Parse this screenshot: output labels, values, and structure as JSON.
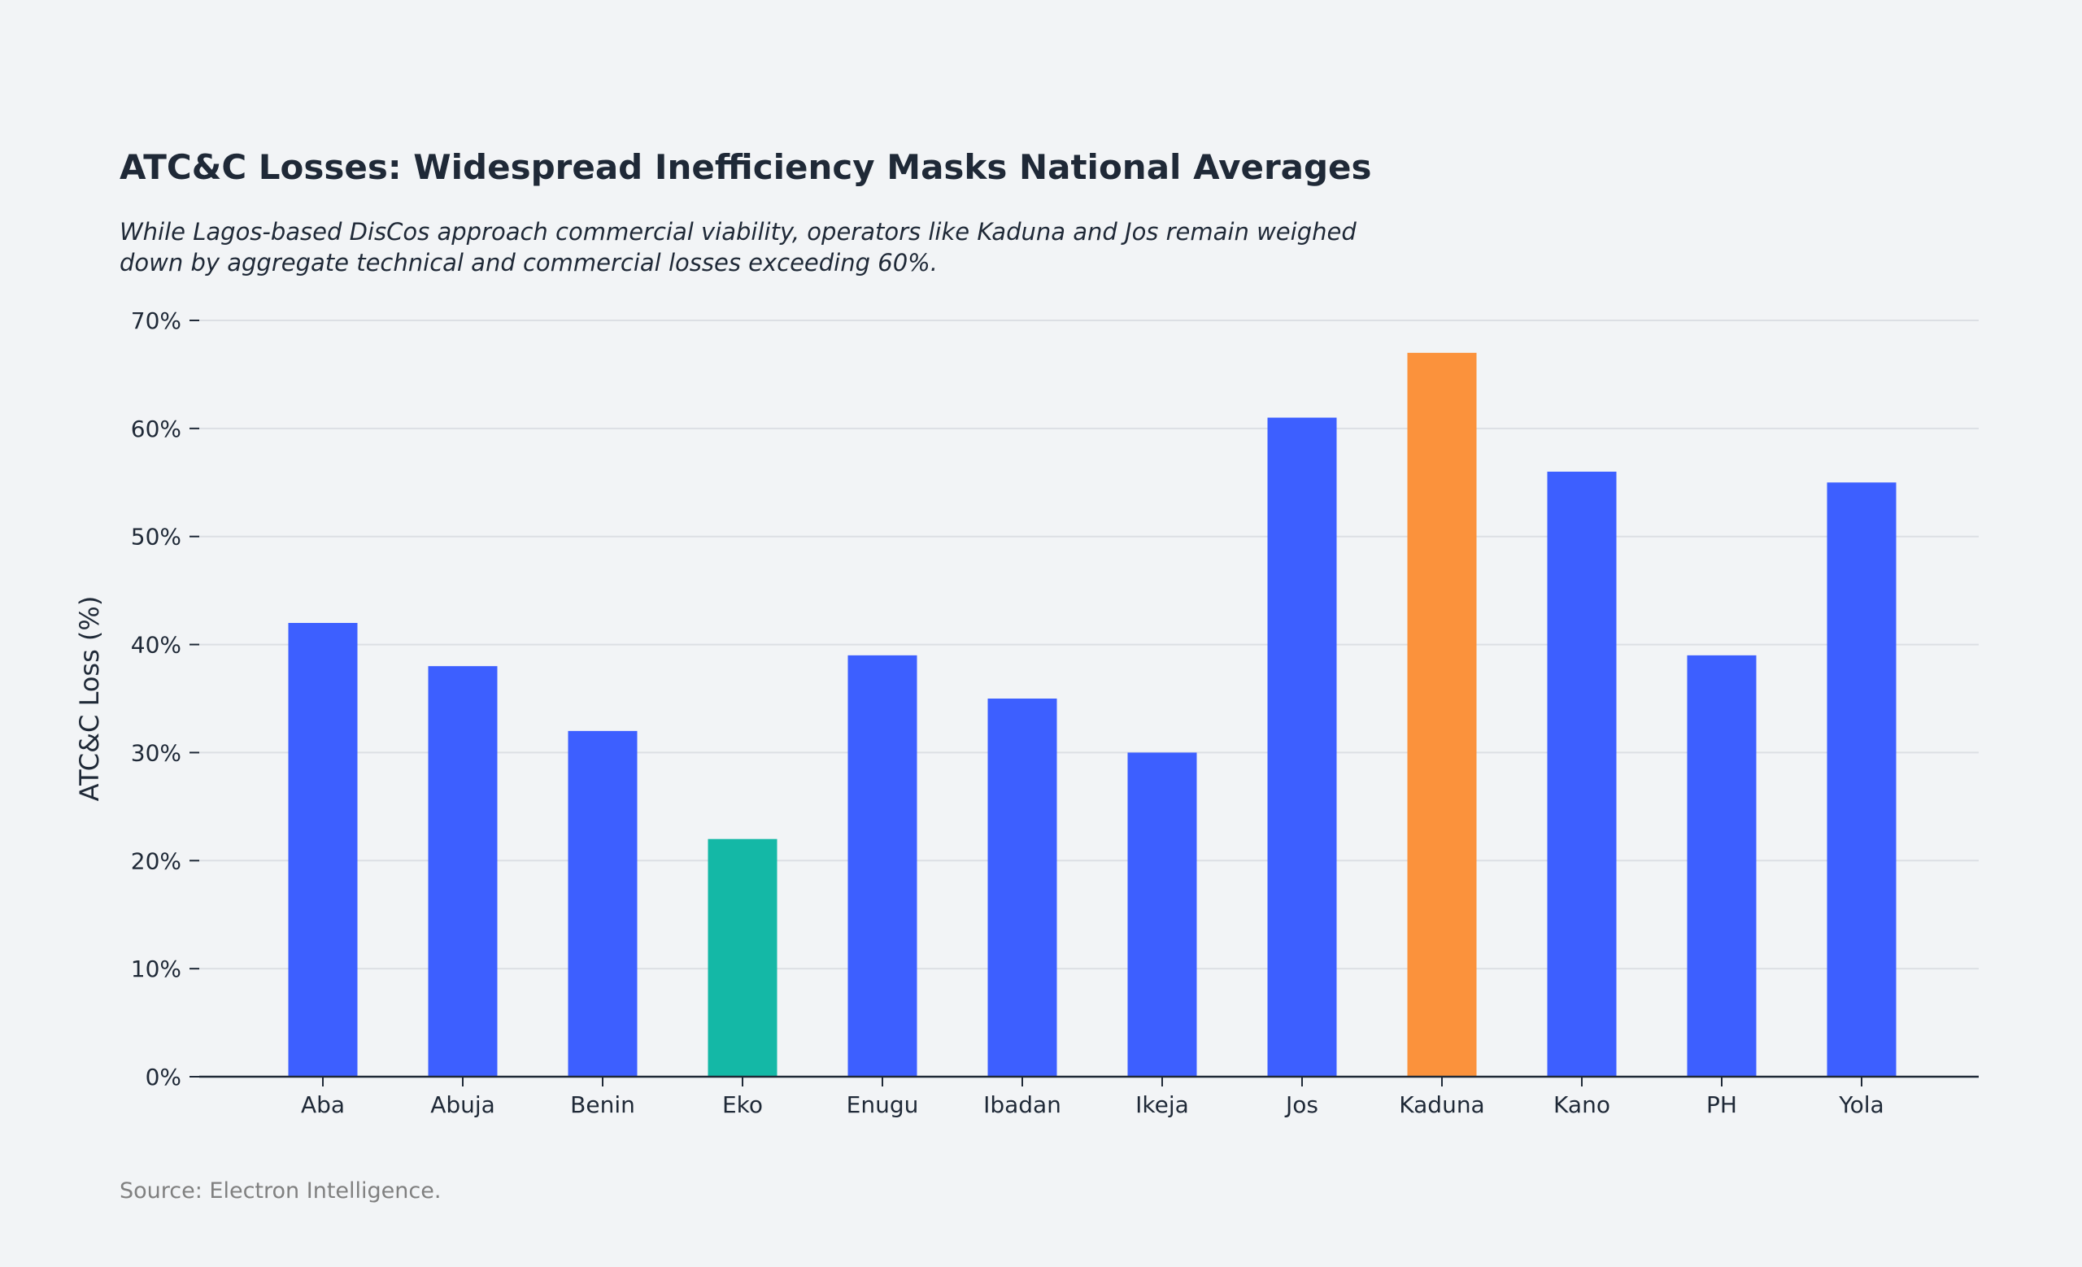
{
  "title": "ATC&C Losses: Widespread Inefficiency Masks National Averages",
  "subtitle_lines": [
    "While Lagos-based DisCos approach commercial viability, operators like Kaduna and Jos remain weighed",
    "down by aggregate technical and commercial losses exceeding 60%."
  ],
  "source": "Source: Electron Intelligence.",
  "chart_data": {
    "type": "bar",
    "title": "ATC&C Losses: Widespread Inefficiency Masks National Averages",
    "xlabel": "",
    "ylabel": "ATC&C Loss (%)",
    "ylim": [
      0,
      70
    ],
    "yticks": [
      0,
      10,
      20,
      30,
      40,
      50,
      60,
      70
    ],
    "ytick_labels": [
      "0%",
      "10%",
      "20%",
      "30%",
      "40%",
      "50%",
      "60%",
      "70%"
    ],
    "grid": "horizontal",
    "categories": [
      "Aba",
      "Abuja",
      "Benin",
      "Eko",
      "Enugu",
      "Ibadan",
      "Ikeja",
      "Jos",
      "Kaduna",
      "Kano",
      "PH",
      "Yola"
    ],
    "values": [
      42,
      38,
      32,
      22,
      39,
      35,
      30,
      61,
      67,
      56,
      39,
      55
    ],
    "colors": {
      "default": "#3d5fff",
      "highlight_low": "#14b8a6",
      "highlight_high": "#fb923c"
    },
    "highlights": {
      "Eko": "highlight_low",
      "Kaduna": "highlight_high"
    }
  }
}
